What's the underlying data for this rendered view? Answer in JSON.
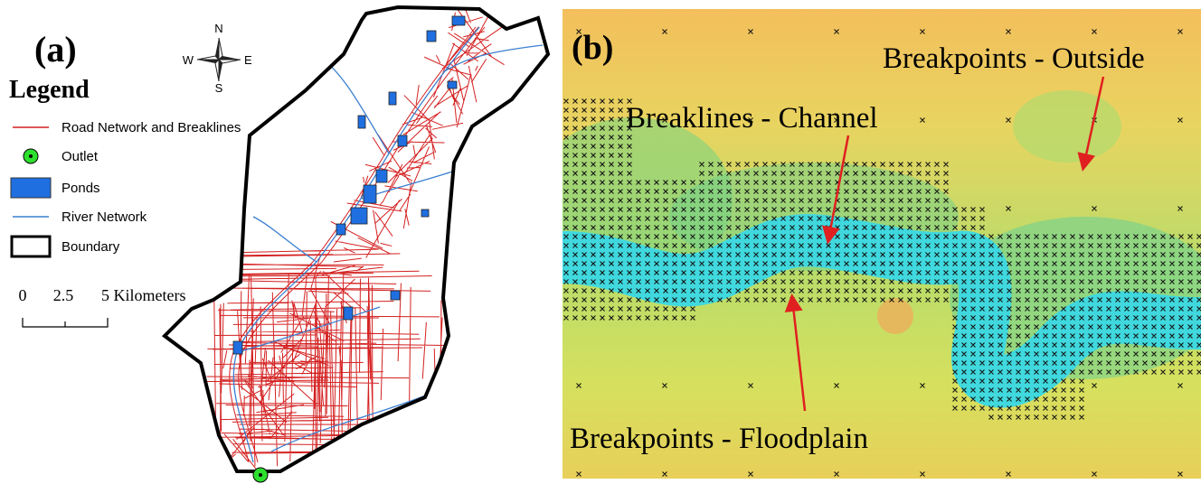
{
  "panel_a": {
    "label": "(a)",
    "legend": {
      "title": "Legend",
      "items": [
        "Road Network and Breaklines",
        "Outlet",
        "Ponds",
        "River Network",
        "Boundary"
      ]
    },
    "compass": {
      "n": "N",
      "s": "S",
      "e": "E",
      "w": "W"
    },
    "scale": {
      "labels": [
        "0",
        "2.5",
        "5 Kilometers"
      ]
    }
  },
  "panel_b": {
    "label": "(b)",
    "annotations": [
      "Breakpoints - Outside",
      "Breaklines - Channel",
      "Breakpoints - Floodplain"
    ]
  }
}
